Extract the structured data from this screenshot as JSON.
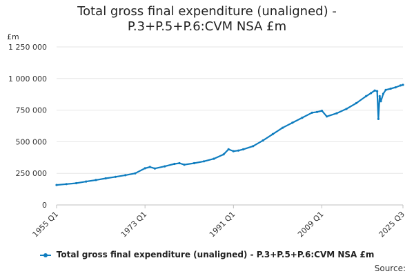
{
  "title_lines": [
    "Total gross final expenditure (unaligned) -",
    "P.3+P.5+P.6:CVM NSA £m"
  ],
  "source_label": "Source:",
  "colors": {
    "series": "#0f7dbf",
    "grid": "#e6e6e6",
    "axis": "#bfbfbf"
  },
  "chart_data": {
    "type": "line",
    "title": "Total gross final expenditure (unaligned) - P.3+P.5+P.6:CVM NSA £m",
    "ylabel": "£m",
    "xlabel": "",
    "ylim": [
      0,
      1250000
    ],
    "y_ticks": [
      0,
      250000,
      500000,
      750000,
      1000000,
      1250000
    ],
    "y_tick_labels": [
      "0",
      "250 000",
      "500 000",
      "750 000",
      "1 000 000",
      "1 250 000"
    ],
    "x_tick_labels": [
      "1955 Q1",
      "1973 Q1",
      "1991 Q1",
      "2009 Q1",
      "2025 Q3"
    ],
    "x_tick_years": [
      1955.0,
      1973.0,
      1991.0,
      2009.0,
      2025.5
    ],
    "grid": true,
    "legend_position": "bottom",
    "series": [
      {
        "name": "Total gross final expenditure (unaligned) - P.3+P.5+P.6:CVM NSA £m",
        "x": [
          1955.0,
          1957.0,
          1959.0,
          1961.0,
          1963.0,
          1965.0,
          1967.0,
          1969.0,
          1971.0,
          1973.0,
          1974.0,
          1975.0,
          1977.0,
          1979.0,
          1980.0,
          1981.0,
          1983.0,
          1985.0,
          1987.0,
          1989.0,
          1990.0,
          1991.0,
          1992.0,
          1993.0,
          1995.0,
          1997.0,
          1999.0,
          2001.0,
          2003.0,
          2005.0,
          2007.0,
          2008.0,
          2009.0,
          2010.0,
          2012.0,
          2014.0,
          2016.0,
          2018.0,
          2019.0,
          2019.75,
          2020.25,
          2020.5,
          2020.75,
          2021.0,
          2021.5,
          2022.0,
          2023.0,
          2024.0,
          2025.0,
          2025.5
        ],
        "values": [
          158000,
          165000,
          172000,
          185000,
          197000,
          210000,
          222000,
          235000,
          250000,
          290000,
          300000,
          288000,
          305000,
          325000,
          330000,
          318000,
          330000,
          345000,
          365000,
          400000,
          440000,
          425000,
          430000,
          440000,
          465000,
          510000,
          560000,
          610000,
          650000,
          690000,
          730000,
          735000,
          745000,
          700000,
          725000,
          760000,
          805000,
          860000,
          885000,
          905000,
          900000,
          680000,
          860000,
          820000,
          880000,
          910000,
          920000,
          930000,
          945000,
          950000
        ]
      }
    ]
  }
}
